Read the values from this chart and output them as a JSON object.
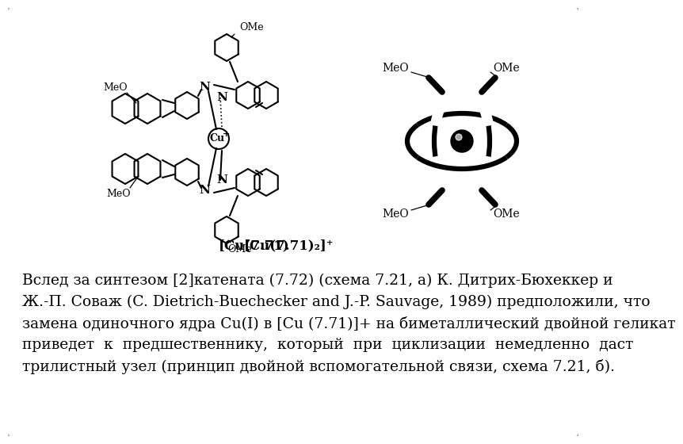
{
  "background_color": "#ffffff",
  "caption": "[Cu(7.71)₂]⁺",
  "paragraph_lines": [
    "Вслед за синтезом [2]катената (7.72) (схема 7.21, а) К. Дитрих-Бюхеккер и",
    "Ж.-П. Соваж (C. Dietrich-Buechecker and J.-P. Sauvage, 1989) предположили, что",
    "замена одиночного ядра Cu(I) в [Cu (7.71)]+ на биметаллический двойной геликат",
    "приведет  к  предшественнику,  который  при  циклизации  немедленно  даст",
    "трилистный узел (принцип двойной вспомогательной связи, схема 7.21, б)."
  ],
  "text_fontsize": 13.5,
  "caption_fontsize": 13,
  "fig_width": 7.2,
  "fig_height": 5.4
}
